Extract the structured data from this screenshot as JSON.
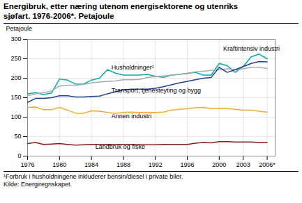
{
  "chart_data": {
    "type": "line",
    "title": "Energibruk, etter næring utenom energisektorene og utenriks\nsjøfart. 1976-2006*. Petajoule",
    "y_label": "Petajoule",
    "footnotes": [
      "¹Forbruk i husholdningene inkluderer bensin/diesel i private biler.",
      "Kilde: Energiregnskapet."
    ],
    "x": [
      1976,
      1977,
      1978,
      1979,
      1980,
      1981,
      1982,
      1983,
      1984,
      1985,
      1986,
      1987,
      1988,
      1989,
      1990,
      1991,
      1992,
      1993,
      1994,
      1995,
      1996,
      1997,
      1998,
      1999,
      2000,
      2001,
      2002,
      2003,
      2004,
      2005,
      2006
    ],
    "series": [
      {
        "name": "Kraftintensiv industri",
        "color": "#00AAAA",
        "values": [
          160,
          163,
          158,
          162,
          198,
          195,
          185,
          185,
          195,
          200,
          222,
          213,
          208,
          208,
          208,
          210,
          205,
          202,
          208,
          210,
          212,
          215,
          208,
          208,
          238,
          232,
          215,
          230,
          255,
          262,
          250
        ]
      },
      {
        "name": "Husholdninger¹",
        "color": "#AAAAAA",
        "values": [
          155,
          160,
          163,
          167,
          180,
          182,
          182,
          184,
          188,
          190,
          192,
          193,
          196,
          196,
          197,
          202,
          204,
          206,
          208,
          210,
          213,
          216,
          218,
          220,
          222,
          224,
          222,
          224,
          228,
          228,
          225
        ]
      },
      {
        "name": "Transport, tjenesteyting og bygg",
        "color": "#1F3F8F",
        "values": [
          138,
          148,
          148,
          150,
          155,
          155,
          152,
          152,
          153,
          154,
          160,
          165,
          170,
          172,
          172,
          172,
          174,
          178,
          183,
          188,
          192,
          196,
          200,
          202,
          228,
          215,
          222,
          230,
          238,
          243,
          242
        ]
      },
      {
        "name": "Annen industri",
        "color": "#F5A833",
        "values": [
          125,
          126,
          119,
          119,
          125,
          118,
          110,
          110,
          116,
          115,
          112,
          110,
          112,
          113,
          112,
          112,
          112,
          113,
          118,
          120,
          122,
          124,
          125,
          122,
          122,
          122,
          120,
          118,
          118,
          115,
          113
        ]
      },
      {
        "name": "Landbruk og fiske",
        "color": "#8B1A1A",
        "values": [
          32,
          35,
          30,
          31,
          32,
          30,
          28,
          29,
          30,
          30,
          30,
          30,
          30,
          30,
          29,
          29,
          29,
          30,
          30,
          30,
          30,
          33,
          35,
          34,
          37,
          37,
          36,
          36,
          36,
          35,
          35
        ]
      }
    ],
    "annotations": [
      {
        "text": "Kraftintensiv industri",
        "x": 2000.5,
        "y": 270
      },
      {
        "text": "Husholdninger¹",
        "x": 1986.5,
        "y": 223
      },
      {
        "text": "Transport, tjenesteyting og bygg",
        "x": 1986.5,
        "y": 164
      },
      {
        "text": "Annen industri",
        "x": 1986.5,
        "y": 97
      },
      {
        "text": "Landbruk og fiske",
        "x": 1984.5,
        "y": 19
      }
    ],
    "xlim": [
      1976,
      2007
    ],
    "xticks": [
      1976,
      1980,
      1984,
      1988,
      1992,
      1996,
      2000,
      2003,
      {
        "value": 2006,
        "label": "2006*"
      }
    ],
    "ylim": [
      0,
      300
    ],
    "yticks": [
      0,
      50,
      100,
      150,
      200,
      250,
      300
    ],
    "grid": true
  }
}
